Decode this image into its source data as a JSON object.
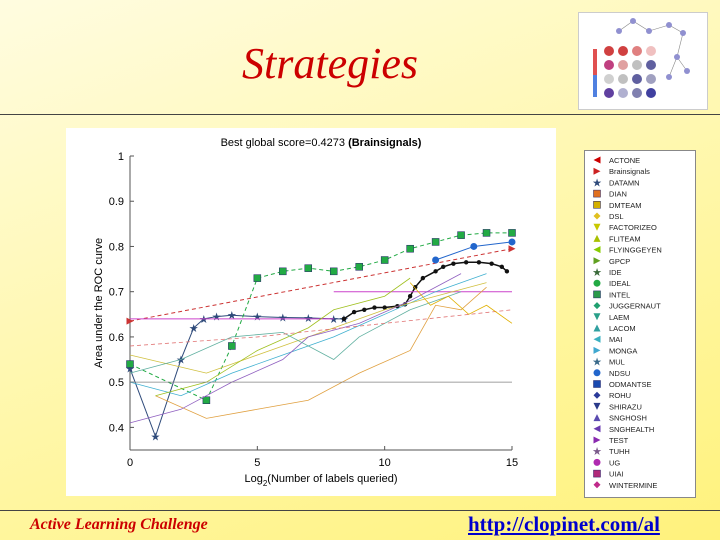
{
  "slide": {
    "title": "Strategies",
    "footer_left": "Active Learning Challenge",
    "footer_right": "http://clopinet.com/al"
  },
  "colors": {
    "title": "#cc0000",
    "link": "#0000cc",
    "background": "#fff7a8"
  },
  "chart_data": {
    "type": "line",
    "title_prefix": "Best global score=0.4273",
    "title_suffix": "(Brainsignals)",
    "xlabel_prefix": "Log",
    "xlabel_sub": "2",
    "xlabel_suffix": "(Number of labels queried)",
    "ylabel": "Area under the ROC curve",
    "xlim": [
      0,
      15
    ],
    "ylim": [
      0.35,
      1.0
    ],
    "x_ticks": [
      0,
      5,
      10,
      15
    ],
    "y_ticks": [
      0.4,
      0.5,
      0.6,
      0.7,
      0.8,
      0.9,
      1.0
    ],
    "grid": false,
    "legend_placement": "outside-right",
    "legend": [
      {
        "name": "ACTONE",
        "color": "#cc0000",
        "marker": "triangle-left"
      },
      {
        "name": "Brainsignals",
        "color": "#cc2222",
        "marker": "triangle-right"
      },
      {
        "name": "DATAMN",
        "color": "#2e4a7a",
        "marker": "star"
      },
      {
        "name": "DIAN",
        "color": "#e07020",
        "marker": "square"
      },
      {
        "name": "DMTEAM",
        "color": "#d4b000",
        "marker": "square"
      },
      {
        "name": "DSL",
        "color": "#e0c020",
        "marker": "diamond"
      },
      {
        "name": "FACTORIZEO",
        "color": "#c8c800",
        "marker": "triangle-down"
      },
      {
        "name": "FLITEAM",
        "color": "#a8c000",
        "marker": "triangle-up"
      },
      {
        "name": "FLYINGGEYEN",
        "color": "#88cc00",
        "marker": "triangle-left"
      },
      {
        "name": "GPCP",
        "color": "#60a020",
        "marker": "triangle-right"
      },
      {
        "name": "IDE",
        "color": "#3a6a3a",
        "marker": "star"
      },
      {
        "name": "IDEAL",
        "color": "#22aa44",
        "marker": "circle"
      },
      {
        "name": "INTEL",
        "color": "#2a9a4a",
        "marker": "square"
      },
      {
        "name": "JUGGERNAUT",
        "color": "#20a070",
        "marker": "diamond"
      },
      {
        "name": "LAEM",
        "color": "#2aa08a",
        "marker": "triangle-down"
      },
      {
        "name": "LACOM",
        "color": "#30a0a0",
        "marker": "triangle-up"
      },
      {
        "name": "MAI",
        "color": "#3ab0c0",
        "marker": "triangle-left"
      },
      {
        "name": "MONGA",
        "color": "#40a8d0",
        "marker": "triangle-right"
      },
      {
        "name": "MUL",
        "color": "#3a6a8a",
        "marker": "star"
      },
      {
        "name": "NDSU",
        "color": "#2266cc",
        "marker": "circle"
      },
      {
        "name": "ODMANTSE",
        "color": "#1a4ab0",
        "marker": "square"
      },
      {
        "name": "ROHU",
        "color": "#2a3a9a",
        "marker": "diamond"
      },
      {
        "name": "SHIRAZU",
        "color": "#2a3a8a",
        "marker": "triangle-down"
      },
      {
        "name": "SNGHOSH",
        "color": "#5a4ab0",
        "marker": "triangle-up"
      },
      {
        "name": "SNGHEALTH",
        "color": "#6a3ab0",
        "marker": "triangle-left"
      },
      {
        "name": "TEST",
        "color": "#8a2ab0",
        "marker": "triangle-right"
      },
      {
        "name": "TUHH",
        "color": "#7a5a8a",
        "marker": "star"
      },
      {
        "name": "UG",
        "color": "#b02ab0",
        "marker": "circle"
      },
      {
        "name": "UIAI",
        "color": "#b02a7a",
        "marker": "square"
      },
      {
        "name": "WINTERMINE",
        "color": "#c02a8a",
        "marker": "diamond"
      }
    ],
    "series": [
      {
        "color": "#2e4a7a",
        "marker": "star",
        "line_width": 1,
        "x": [
          0,
          1.0,
          2.0,
          2.5,
          2.9,
          3.4,
          4.0,
          5.0,
          6.0,
          7.0,
          8.0,
          8.4
        ],
        "y": [
          0.53,
          0.38,
          0.55,
          0.62,
          0.64,
          0.645,
          0.648,
          0.645,
          0.643,
          0.642,
          0.64,
          0.64
        ]
      },
      {
        "color": "#111111",
        "marker": "dot",
        "line_width": 1.5,
        "x": [
          8.4,
          8.8,
          9.2,
          9.6,
          10.0,
          10.5,
          10.8,
          11.0,
          11.2,
          11.5,
          12.0,
          12.3,
          12.7,
          13.2,
          13.7,
          14.2,
          14.6,
          14.8
        ],
        "y": [
          0.64,
          0.655,
          0.66,
          0.665,
          0.665,
          0.668,
          0.672,
          0.69,
          0.71,
          0.73,
          0.745,
          0.755,
          0.762,
          0.765,
          0.765,
          0.762,
          0.755,
          0.745
        ]
      },
      {
        "color": "#22aa44",
        "marker": "square-filled",
        "line_width": 1,
        "dashed": true,
        "x": [
          0,
          3,
          4,
          5,
          6,
          7,
          8,
          9,
          10,
          11,
          12,
          13,
          14,
          15
        ],
        "y": [
          0.54,
          0.46,
          0.58,
          0.73,
          0.745,
          0.752,
          0.745,
          0.755,
          0.77,
          0.795,
          0.81,
          0.825,
          0.83,
          0.83
        ]
      },
      {
        "color": "#cc3333",
        "marker": "triangle-right",
        "line_width": 1,
        "dashed": true,
        "x": [
          0,
          15
        ],
        "y": [
          0.635,
          0.795
        ]
      },
      {
        "color": "#2266cc",
        "marker": "circle",
        "line_width": 1,
        "x": [
          12,
          13.5,
          15
        ],
        "y": [
          0.77,
          0.8,
          0.81
        ]
      },
      {
        "color": "#cc44cc",
        "marker": "none",
        "line_width": 1,
        "x": [
          8,
          15
        ],
        "y": [
          0.7,
          0.7
        ]
      },
      {
        "color": "#cc44cc",
        "marker": "none",
        "line_width": 1,
        "x": [
          0,
          8
        ],
        "y": [
          0.64,
          0.64
        ]
      },
      {
        "color": "#e0a040",
        "marker": "none",
        "line_width": 0.8,
        "x": [
          1,
          3,
          5,
          7,
          9,
          11,
          12,
          13,
          14
        ],
        "y": [
          0.47,
          0.42,
          0.44,
          0.46,
          0.52,
          0.57,
          0.67,
          0.66,
          0.71
        ]
      },
      {
        "color": "#40b0d0",
        "marker": "none",
        "line_width": 0.8,
        "x": [
          0,
          2,
          4,
          6,
          8,
          10,
          12,
          14
        ],
        "y": [
          0.5,
          0.47,
          0.52,
          0.56,
          0.6,
          0.65,
          0.7,
          0.74
        ]
      },
      {
        "color": "#d0c040",
        "marker": "none",
        "line_width": 0.8,
        "x": [
          0,
          3,
          6,
          8,
          10,
          12,
          14
        ],
        "y": [
          0.56,
          0.52,
          0.58,
          0.62,
          0.66,
          0.69,
          0.72
        ]
      },
      {
        "color": "#9060c0",
        "marker": "none",
        "line_width": 0.8,
        "x": [
          0,
          2,
          4,
          6,
          7,
          9,
          11,
          13
        ],
        "y": [
          0.41,
          0.44,
          0.5,
          0.55,
          0.6,
          0.63,
          0.68,
          0.74
        ]
      },
      {
        "color": "#a0c020",
        "marker": "none",
        "line_width": 0.8,
        "x": [
          1,
          3,
          5,
          7,
          8,
          10,
          11
        ],
        "y": [
          0.47,
          0.5,
          0.57,
          0.62,
          0.66,
          0.69,
          0.73
        ]
      },
      {
        "color": "#60b0a0",
        "marker": "none",
        "line_width": 0.8,
        "x": [
          0,
          2,
          4,
          6,
          8,
          9,
          11,
          13
        ],
        "y": [
          0.52,
          0.55,
          0.6,
          0.61,
          0.55,
          0.6,
          0.66,
          0.7
        ]
      },
      {
        "color": "#e07070",
        "marker": "none",
        "line_width": 0.8,
        "dashed": true,
        "x": [
          0,
          5,
          10,
          15
        ],
        "y": [
          0.58,
          0.6,
          0.63,
          0.66
        ]
      },
      {
        "color": "#e0b000",
        "marker": "none",
        "line_width": 0.8,
        "x": [
          11,
          11.8,
          12.5,
          13.3,
          14,
          15
        ],
        "y": [
          0.72,
          0.67,
          0.69,
          0.65,
          0.67,
          0.63
        ]
      },
      {
        "color": "#808080",
        "marker": "none",
        "line_width": 0.8,
        "x": [
          0,
          15
        ],
        "y": [
          0.5,
          0.5
        ]
      }
    ]
  }
}
